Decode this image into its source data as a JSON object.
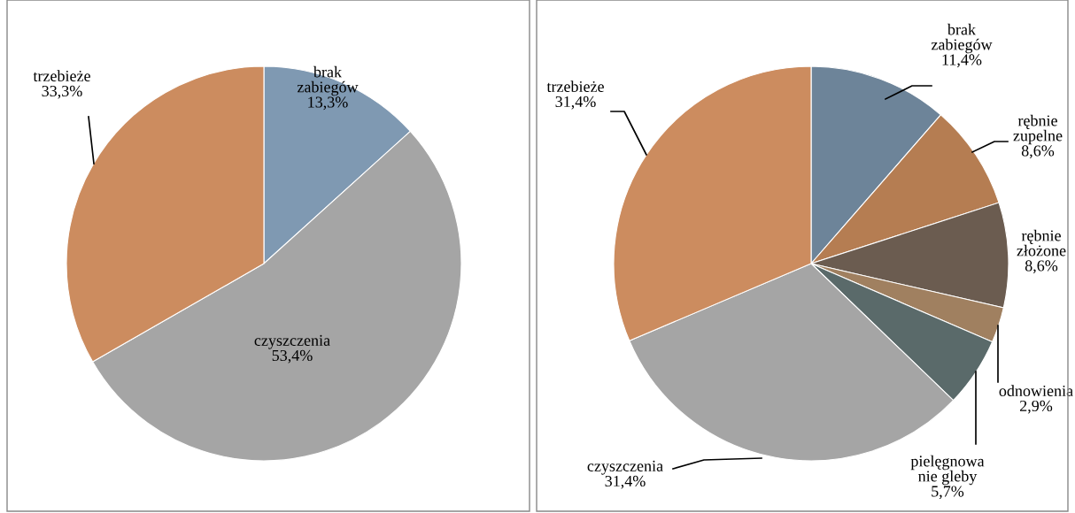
{
  "chart_data": [
    {
      "type": "pie",
      "categories": [
        "brak\nzabiegów",
        "czyszczenia",
        "trzebieże"
      ],
      "values": [
        13.3,
        53.4,
        33.3
      ],
      "colors": [
        "#7f99b2",
        "#a5a5a5",
        "#cc8c5f"
      ],
      "value_labels": [
        "13,3%",
        "53,4%",
        "33,3%"
      ]
    },
    {
      "type": "pie",
      "categories": [
        "brak\nzabiegów",
        "rębnie\nzupelne",
        "rębnie\nzłożone",
        "odnowienia",
        "pielęgnowa\nnie gleby",
        "czyszczenia",
        "trzebieże"
      ],
      "values": [
        11.4,
        8.6,
        8.6,
        2.9,
        5.7,
        31.4,
        31.4
      ],
      "colors": [
        "#6d8499",
        "#b57d52",
        "#6b5c50",
        "#a08060",
        "#5a6a6a",
        "#a5a5a5",
        "#cc8c5f"
      ],
      "value_labels": [
        "11,4%",
        "8,6%",
        "8,6%",
        "2,9%",
        "5,7%",
        "31,4%",
        "31,4%"
      ]
    }
  ]
}
